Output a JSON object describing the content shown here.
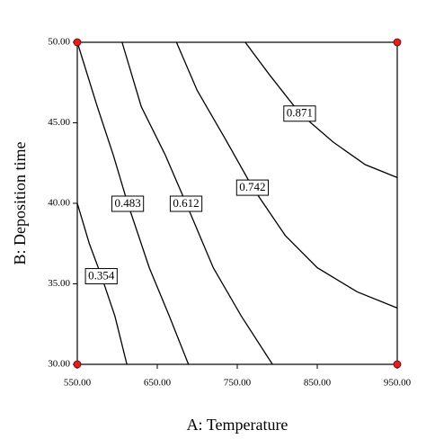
{
  "chart_data": {
    "type": "contour",
    "xlabel": "A: Temperature",
    "ylabel": "B: Deposition time",
    "xlim": [
      550,
      950
    ],
    "ylim": [
      30,
      50
    ],
    "xticks": [
      {
        "value": 550,
        "label": "550.00"
      },
      {
        "value": 650,
        "label": "650.00"
      },
      {
        "value": 750,
        "label": "750.00"
      },
      {
        "value": 850,
        "label": "850.00"
      },
      {
        "value": 950,
        "label": "950.00"
      }
    ],
    "yticks": [
      {
        "value": 30,
        "label": "30.00"
      },
      {
        "value": 35,
        "label": "35.00"
      },
      {
        "value": 40,
        "label": "40.00"
      },
      {
        "value": 45,
        "label": "45.00"
      },
      {
        "value": 50,
        "label": "50.00"
      }
    ],
    "line_color": "#000000",
    "contours": [
      {
        "level": 0.354,
        "x": [
          550,
          565,
          580,
          597,
          612
        ],
        "y": [
          40,
          37.5,
          35.5,
          33,
          30
        ]
      },
      {
        "level": 0.483,
        "x": [
          550,
          575,
          595,
          613,
          640,
          665,
          689
        ],
        "y": [
          50,
          46,
          43,
          40,
          36,
          33,
          30
        ]
      },
      {
        "level": 0.612,
        "x": [
          606,
          630,
          660,
          686,
          720,
          755,
          794
        ],
        "y": [
          50,
          46,
          43,
          40,
          36,
          33,
          30
        ]
      },
      {
        "level": 0.742,
        "x": [
          674,
          700,
          735,
          769,
          810,
          850,
          900,
          950
        ],
        "y": [
          50,
          47,
          44,
          41,
          38,
          36,
          34.5,
          33.5
        ]
      },
      {
        "level": 0.871,
        "x": [
          760,
          790,
          828,
          870,
          910,
          950
        ],
        "y": [
          50,
          48,
          45.6,
          43.8,
          42.4,
          41.6
        ]
      }
    ],
    "points": {
      "x": [
        550,
        550,
        950,
        950
      ],
      "y": [
        30,
        50,
        30,
        50
      ],
      "color": "#e02020"
    }
  }
}
